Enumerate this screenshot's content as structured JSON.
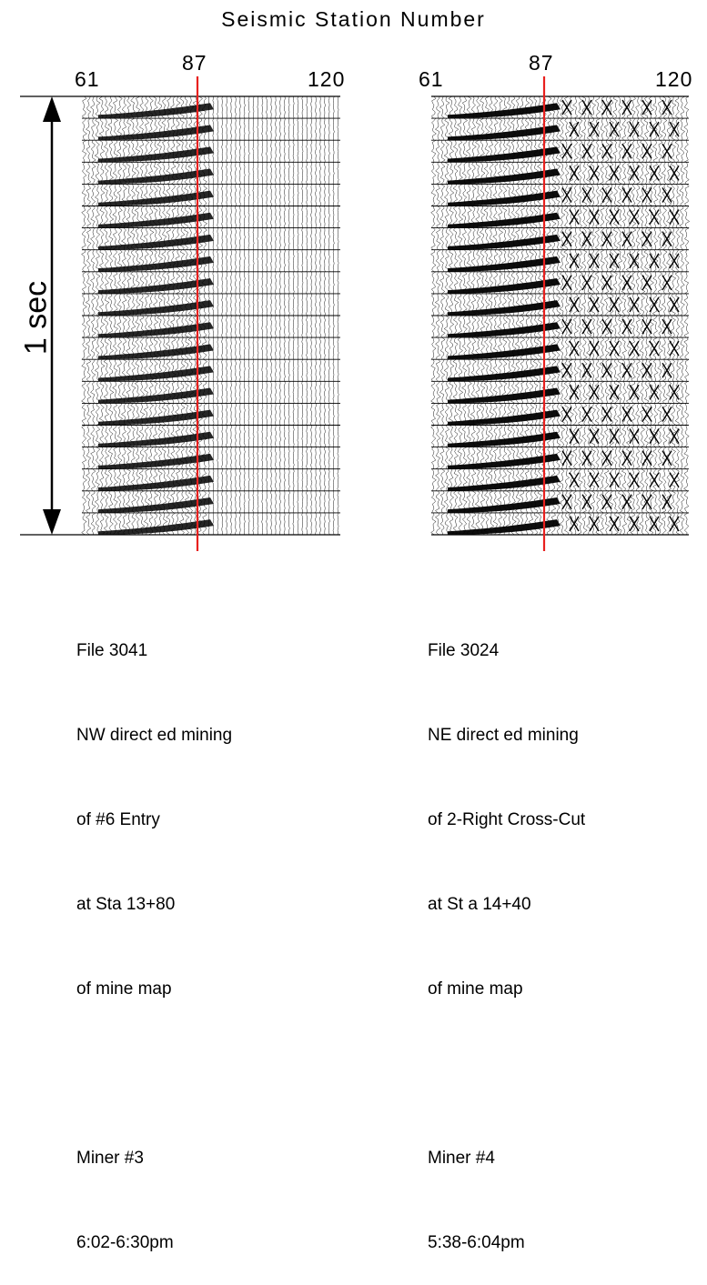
{
  "figure": {
    "title": "Seismic Station Number",
    "time_scale_label": "1 sec",
    "colors": {
      "trace": "#000000",
      "marker_line": "#e8201e",
      "background": "#ffffff"
    }
  },
  "panels": [
    {
      "station_start": "61",
      "station_marker": "87",
      "station_end": "120",
      "caption": {
        "file": "File 3041",
        "line1": "NW direct ed mining",
        "line2": "of #6 Entry",
        "line3": "at Sta 13+80",
        "line4": "of mine map",
        "miner": "Miner #3",
        "time": "6:02-6:30pm"
      }
    },
    {
      "station_start": "61",
      "station_marker": "87",
      "station_end": "120",
      "caption": {
        "file": "File 3024",
        "line1": "NE direct ed mining",
        "line2": "of 2-Right Cross-Cut",
        "line3": "at St a 14+40",
        "line4": "of mine map",
        "miner": "Miner #4",
        "time": "5:38-6:04pm"
      }
    }
  ]
}
